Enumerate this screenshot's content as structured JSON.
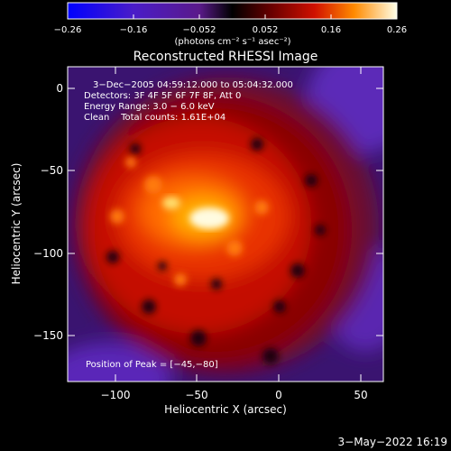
{
  "colorbar": {
    "tick_labels": [
      "−0.26",
      "−0.16",
      "−0.052",
      "0.052",
      "0.16",
      "0.26"
    ],
    "units": "(photons cm⁻² s⁻¹ asec⁻²)"
  },
  "title": "Reconstructed RHESSI Image",
  "info": {
    "time_range": "3−Dec−2005 04:59:12.000 to 05:04:32.000",
    "detectors": "Detectors: 3F 4F 5F 6F 7F 8F, Att 0",
    "energy": "Energy Range: 3.0 − 6.0 keV",
    "clean": "Clean    Total counts: 1.61E+04",
    "peak": "Position of Peak = [−45,−80]"
  },
  "axes": {
    "xlabel": "Heliocentric X (arcsec)",
    "ylabel": "Heliocentric Y (arcsec)",
    "x_ticks": [
      "−100",
      "−50",
      "0",
      "50"
    ],
    "y_ticks": [
      "0",
      "−50",
      "−100",
      "−150"
    ]
  },
  "footer_date": "3−May−2022 16:19"
}
